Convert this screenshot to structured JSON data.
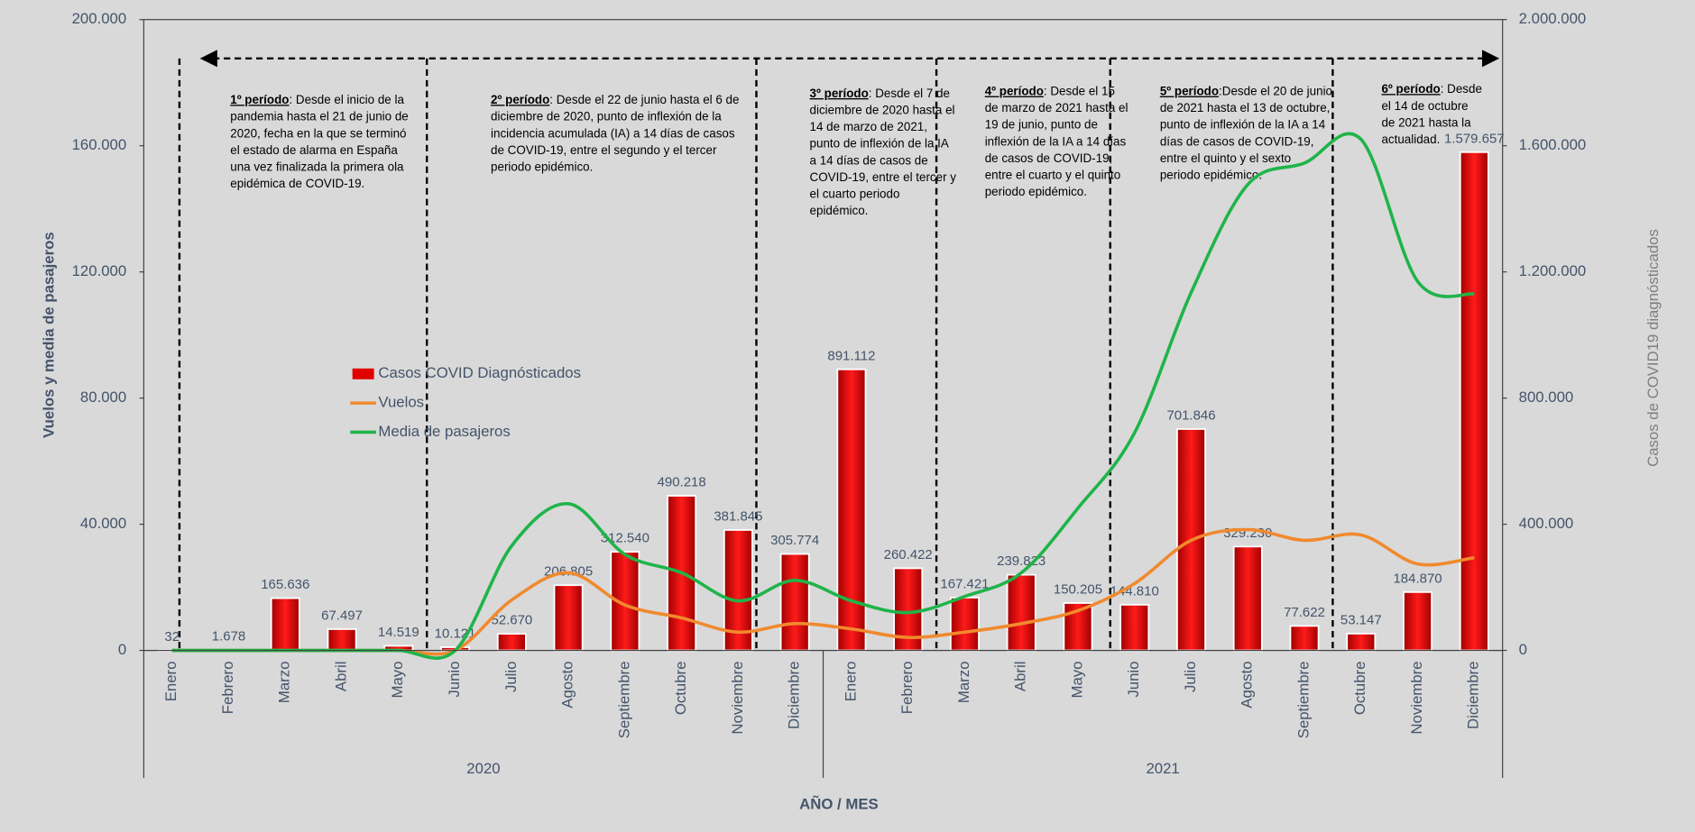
{
  "chart_data": {
    "type": "bar-line",
    "y_label": "Vuelos y media de pasajeros",
    "y2_label": "Casos de COVID19 diagnósticados",
    "x_label": "AÑO / MES",
    "categories": [
      "Enero",
      "Febrero",
      "Marzo",
      "Abril",
      "Mayo",
      "Junio",
      "Julio",
      "Agosto",
      "Septiembre",
      "Octubre",
      "Noviembre",
      "Diciembre",
      "Enero",
      "Febrero",
      "Marzo",
      "Abril",
      "Mayo",
      "Junio",
      "Julio",
      "Agosto",
      "Septiembre",
      "Octubre",
      "Noviembre",
      "Diciembre"
    ],
    "years": [
      "2020",
      "2021"
    ],
    "ylim": [
      0,
      200000
    ],
    "yticks": [
      0,
      {
        "value": 40000,
        "label": "40.000"
      },
      {
        "value": 80000,
        "label": "80.000"
      },
      {
        "value": 120000,
        "label": "120.000"
      },
      {
        "value": 160000,
        "label": "160.000"
      },
      {
        "value": 200000,
        "label": "200.000"
      }
    ],
    "y2lim": [
      0,
      2000000
    ],
    "y2ticks": [
      0,
      {
        "value": 400000,
        "label": "400.000"
      },
      {
        "value": 800000,
        "label": "800.000"
      },
      {
        "value": 1200000,
        "label": "1.200.000"
      },
      {
        "value": 1600000,
        "label": "1.600.000"
      },
      {
        "value": 2000000,
        "label": "2.000.000"
      }
    ],
    "series": [
      {
        "name": "Casos COVID Diagnósticados",
        "type": "bar",
        "axis": "y2",
        "color": "#e00000",
        "values": [
          32,
          1678,
          165636,
          67497,
          14519,
          10121,
          52670,
          206805,
          312540,
          490218,
          381845,
          305774,
          891112,
          260422,
          167421,
          239823,
          150205,
          144810,
          701846,
          329230,
          77622,
          53147,
          184870,
          1579657
        ],
        "value_labels": [
          "32",
          "1.678",
          "165.636",
          "67.497",
          "14.519",
          "10.121",
          "52.670",
          "206.805",
          "312.540",
          "490.218",
          "381.845",
          "305.774",
          "891.112",
          "260.422",
          "167.421",
          "239.823",
          "150.205",
          "144.810",
          "701.846",
          "329.230",
          "77.622",
          "53.147",
          "184.870",
          "1.579.657"
        ]
      },
      {
        "name": "Vuelos",
        "type": "line",
        "color": "#f08a2e",
        "values": [
          0,
          0,
          0,
          0,
          0,
          0,
          16000,
          24600,
          14400,
          10300,
          5800,
          8500,
          6800,
          4100,
          5800,
          8500,
          12600,
          21200,
          34900,
          38300,
          34900,
          36600,
          27400,
          29400
        ]
      },
      {
        "name": "Media de pasajeros",
        "type": "line",
        "color": "#1fb44a",
        "values": [
          0,
          0,
          0,
          0,
          0,
          0,
          33200,
          46500,
          30400,
          24600,
          15700,
          22200,
          15700,
          12000,
          17100,
          24600,
          45100,
          69000,
          113500,
          147700,
          154500,
          162000,
          117000,
          113000
        ]
      }
    ],
    "annotations": [
      {
        "label": "1º período",
        "lines": [
          ": Desde el inicio de la",
          "pandemia hasta el 21 de junio de",
          "2020, fecha en la que se terminó",
          "el estado de alarma en España",
          "una vez finalizada la primera ola",
          "epidémica de COVID-19."
        ]
      },
      {
        "label": "2º período",
        "lines": [
          ": Desde el 22 de junio hasta el 6 de",
          "diciembre de 2020, punto de inflexión de la",
          "incidencia acumulada (IA) a 14 días de casos",
          "de COVID-19, entre el segundo y el tercer",
          "periodo epidémico."
        ]
      },
      {
        "label": "3º período",
        "lines": [
          ": Desde el 7 de",
          "diciembre de 2020 hasta el",
          "14 de marzo de 2021,",
          "punto de inflexión de la IA",
          "a 14 días de casos de",
          "COVID-19, entre el tercer y",
          "el cuarto periodo",
          "epidémico."
        ]
      },
      {
        "label": "4º período",
        "lines": [
          ": Desde el 15",
          "de marzo de 2021 hasta el",
          "19 de junio, punto de",
          "inflexión de la IA a 14 días",
          "de casos de COVID-19,",
          "entre el cuarto y el quinto",
          "periodo epidémico."
        ]
      },
      {
        "label": "5º período",
        "lines": [
          ":Desde el 20 de junio",
          "de 2021 hasta el 13 de octubre,",
          "punto de inflexión de la IA a 14",
          "días de casos de COVID-19,",
          "entre el quinto y el sexto",
          "periodo epidémico."
        ]
      },
      {
        "label": "6º período",
        "lines": [
          ": Desde",
          "el 14 de octubre",
          "de 2021 hasta la",
          "actualidad."
        ]
      }
    ]
  }
}
